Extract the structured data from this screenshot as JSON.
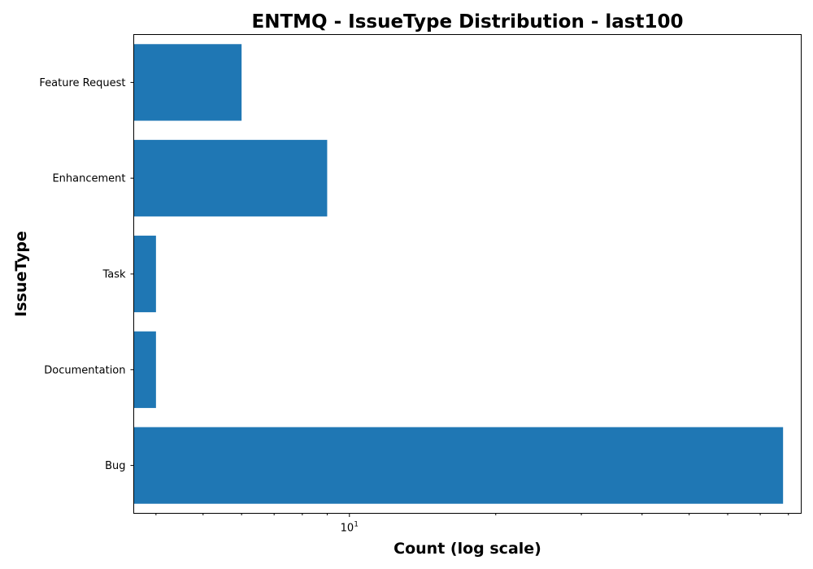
{
  "chart_data": {
    "type": "bar",
    "orientation": "horizontal",
    "title": "ENTMQ - IssueType Distribution - last100",
    "xlabel": "Count (log scale)",
    "ylabel": "IssueType",
    "x_scale": "log",
    "xlim": [
      3.6,
      85
    ],
    "x_tick_labels": [
      {
        "value": 10,
        "base": "10",
        "exp": "1"
      }
    ],
    "x_minor_ticks": [
      4,
      5,
      6,
      7,
      8,
      9,
      20,
      30,
      40,
      50,
      60,
      70,
      80
    ],
    "categories": [
      "Feature Request",
      "Enhancement",
      "Task",
      "Documentation",
      "Bug"
    ],
    "values": [
      6,
      9,
      4,
      4,
      78
    ],
    "bar_color": "#1f77b4",
    "grid": false,
    "legend": "none"
  }
}
